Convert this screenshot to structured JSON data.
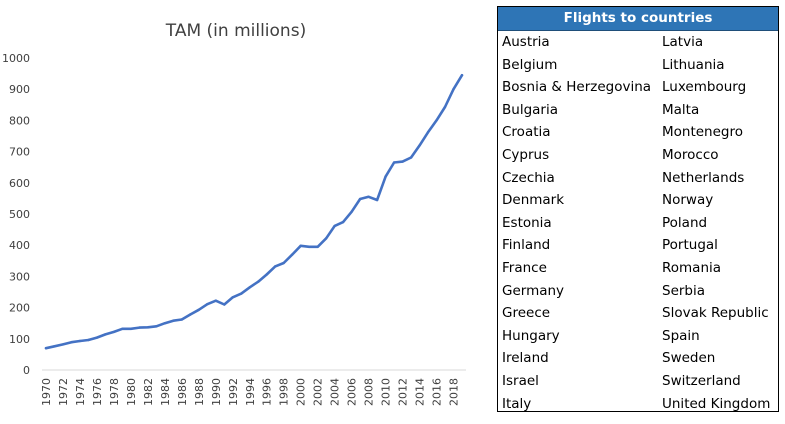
{
  "chart_data": {
    "type": "line",
    "title": "TAM (in millions)",
    "xlabel": "",
    "ylabel": "",
    "ylim": [
      0,
      1000
    ],
    "yticks": [
      0,
      100,
      200,
      300,
      400,
      500,
      600,
      700,
      800,
      900,
      1000
    ],
    "xticks": [
      "1970",
      "1972",
      "1974",
      "1976",
      "1978",
      "1980",
      "1982",
      "1984",
      "1986",
      "1988",
      "1990",
      "1992",
      "1994",
      "1996",
      "1998",
      "2000",
      "2002",
      "2004",
      "2006",
      "2008",
      "2010",
      "2012",
      "2014",
      "2016",
      "2018"
    ],
    "grid": false,
    "line_color": "#4472c4",
    "x": [
      1970,
      1971,
      1972,
      1973,
      1974,
      1975,
      1976,
      1977,
      1978,
      1979,
      1980,
      1981,
      1982,
      1983,
      1984,
      1985,
      1986,
      1987,
      1988,
      1989,
      1990,
      1991,
      1992,
      1993,
      1994,
      1995,
      1996,
      1997,
      1998,
      1999,
      2000,
      2001,
      2002,
      2003,
      2004,
      2005,
      2006,
      2007,
      2008,
      2009,
      2010,
      2011,
      2012,
      2013,
      2014,
      2015,
      2016,
      2017,
      2018,
      2019
    ],
    "values": [
      70,
      76,
      82,
      89,
      93,
      96,
      104,
      114,
      122,
      132,
      132,
      136,
      137,
      140,
      150,
      158,
      162,
      178,
      193,
      211,
      222,
      210,
      233,
      245,
      265,
      283,
      306,
      332,
      343,
      370,
      398,
      395,
      395,
      422,
      462,
      474,
      507,
      548,
      555,
      545,
      620,
      665,
      668,
      681,
      720,
      762,
      800,
      843,
      900,
      945
    ]
  },
  "table": {
    "header": "Flights to countries",
    "col1": [
      "Austria",
      "Belgium",
      "Bosnia & Herzegovina",
      "Bulgaria",
      "Croatia",
      "Cyprus",
      "Czechia",
      "Denmark",
      "Estonia",
      "Finland",
      "France",
      "Germany",
      "Greece",
      "Hungary",
      "Ireland",
      "Israel",
      "Italy"
    ],
    "col2": [
      "Latvia",
      "Lithuania",
      "Luxembourg",
      "Malta",
      "Montenegro",
      "Morocco",
      "Netherlands",
      "Norway",
      "Poland",
      "Portugal",
      "Romania",
      "Serbia",
      "Slovak Republic",
      "Spain",
      "Sweden",
      "Switzerland",
      "United Kingdom"
    ],
    "header_color": "#2e75b6"
  }
}
